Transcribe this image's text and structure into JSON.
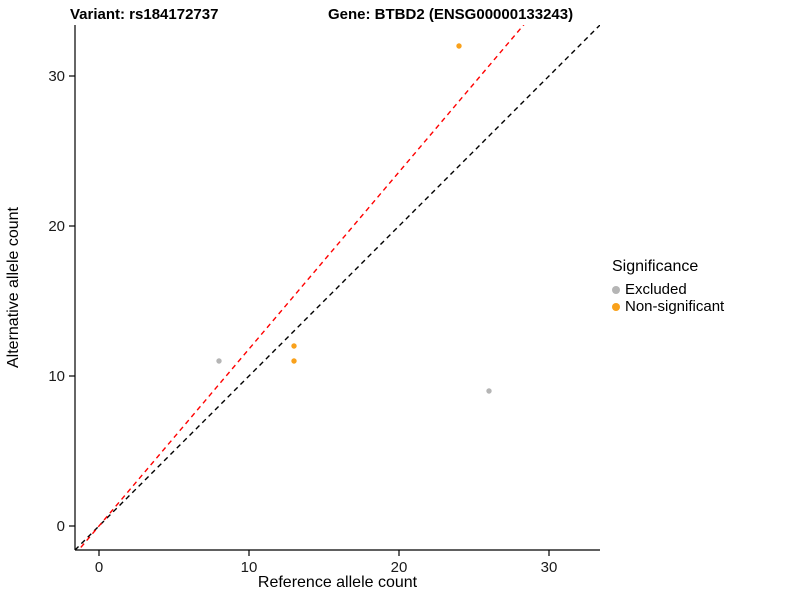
{
  "titles": {
    "variant": "Variant: rs184172737",
    "gene": "Gene: BTBD2 (ENSG00000133243)"
  },
  "chart_data": {
    "type": "scatter",
    "xlabel": "Reference allele count",
    "ylabel": "Alternative allele count",
    "xlim": [
      -1.6,
      33.4
    ],
    "ylim": [
      -1.6,
      33.4
    ],
    "xticks": [
      0,
      10,
      20,
      30
    ],
    "yticks": [
      0,
      10,
      20,
      30
    ],
    "grid": false,
    "series": [
      {
        "name": "Excluded",
        "color": "#B5B5B5",
        "points": [
          {
            "x": 8,
            "y": 11
          },
          {
            "x": 26,
            "y": 9
          }
        ]
      },
      {
        "name": "Non-significant",
        "color": "#F9A11B",
        "points": [
          {
            "x": 13,
            "y": 12
          },
          {
            "x": 13,
            "y": 11
          },
          {
            "x": 24,
            "y": 32
          }
        ]
      }
    ],
    "lines": [
      {
        "name": "identity",
        "slope": 1,
        "intercept": 0,
        "color": "#000000",
        "dash": "5 4"
      },
      {
        "name": "ratio",
        "slope": 1.18,
        "intercept": 0,
        "color": "#FF0000",
        "dash": "5 4"
      }
    ],
    "legend": {
      "title": "Significance",
      "position": "right",
      "entries": [
        {
          "label": "Excluded",
          "color": "#B5B5B5"
        },
        {
          "label": "Non-significant",
          "color": "#F9A11B"
        }
      ]
    },
    "axis_color": "#000000",
    "tick_label_color": "#1a1a1a"
  }
}
